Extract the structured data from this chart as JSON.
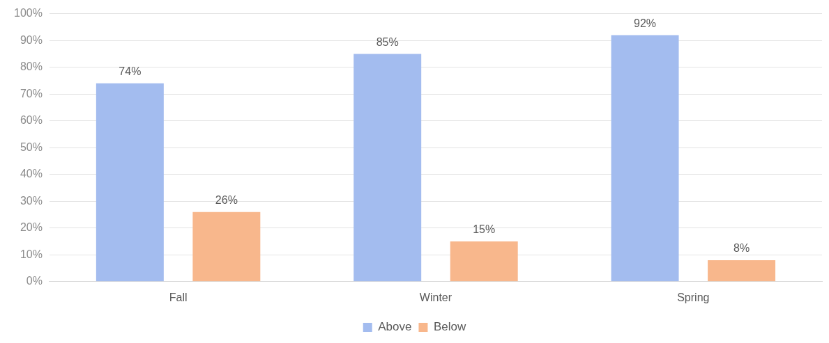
{
  "chart_data": {
    "type": "bar",
    "categories": [
      "Fall",
      "Winter",
      "Spring"
    ],
    "series": [
      {
        "name": "Above",
        "color": "#a3bcef",
        "values": [
          74,
          85,
          92
        ],
        "value_labels": [
          "74%",
          "85%",
          "92%"
        ]
      },
      {
        "name": "Below",
        "color": "#f8b78c",
        "values": [
          26,
          15,
          8
        ],
        "value_labels": [
          "26%",
          "15%",
          "8%"
        ]
      }
    ],
    "ylim": [
      0,
      100
    ],
    "yticks": [
      {
        "value": 0,
        "label": "0%"
      },
      {
        "value": 10,
        "label": "10%"
      },
      {
        "value": 20,
        "label": "20%"
      },
      {
        "value": 30,
        "label": "30%"
      },
      {
        "value": 40,
        "label": "40%"
      },
      {
        "value": 50,
        "label": "50%"
      },
      {
        "value": 60,
        "label": "60%"
      },
      {
        "value": 70,
        "label": "70%"
      },
      {
        "value": 80,
        "label": "80%"
      },
      {
        "value": 90,
        "label": "90%"
      },
      {
        "value": 100,
        "label": "100%"
      }
    ],
    "grid": "y",
    "legend": "bottom"
  }
}
